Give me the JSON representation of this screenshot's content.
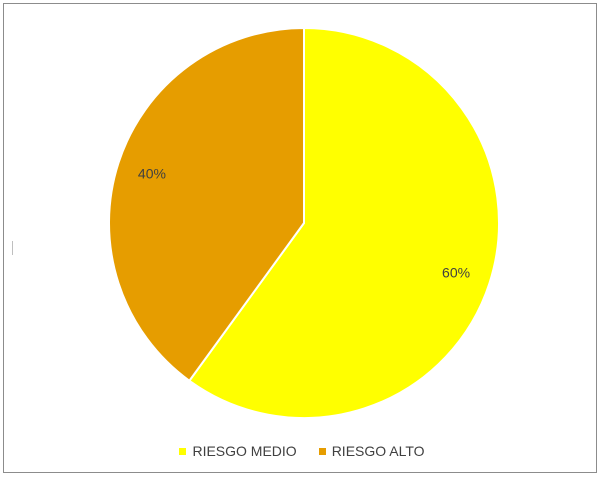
{
  "chart_data": {
    "type": "pie",
    "categories": [
      "RIESGO MEDIO",
      "RIESGO ALTO"
    ],
    "values": [
      60,
      40
    ],
    "data_labels": [
      "60%",
      "40%"
    ],
    "colors": [
      "#FFFF00",
      "#E69D00"
    ],
    "title": "",
    "legend_position": "bottom",
    "start_angle": "12 o'clock, clockwise"
  }
}
